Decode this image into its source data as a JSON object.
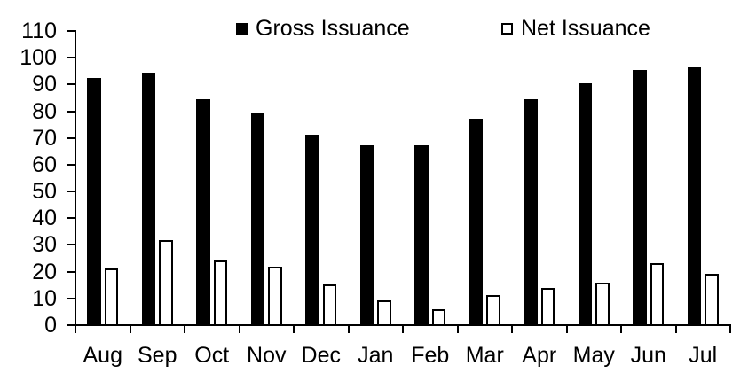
{
  "chart_data": {
    "type": "bar",
    "title": "",
    "xlabel": "",
    "ylabel": "",
    "categories": [
      "Aug",
      "Sep",
      "Oct",
      "Nov",
      "Dec",
      "Jan",
      "Feb",
      "Mar",
      "Apr",
      "May",
      "Jun",
      "Jul"
    ],
    "series": [
      {
        "name": "Gross Issuance",
        "fill": "#000000",
        "border": "#000000",
        "values": [
          92,
          94,
          84,
          79,
          71,
          67,
          67,
          77,
          84,
          90,
          95,
          96
        ]
      },
      {
        "name": "Net Issuance",
        "fill": "#ffffff",
        "border": "#000000",
        "values": [
          21,
          31.5,
          24,
          21.5,
          15,
          9,
          5.5,
          11,
          13.5,
          15.5,
          23,
          19
        ]
      }
    ],
    "ylim": [
      0,
      110
    ],
    "ytick_step": 10,
    "grid": false,
    "legend_position": "top",
    "axis_color": "#000000",
    "background": "#ffffff"
  }
}
